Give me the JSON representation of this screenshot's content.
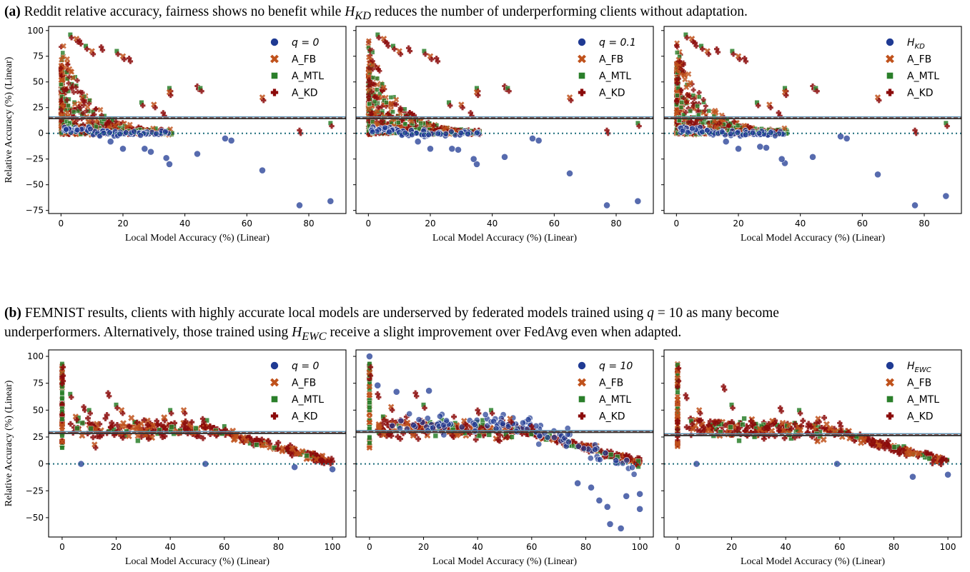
{
  "captions": {
    "a": {
      "tag": "(a)",
      "text": "Reddit relative accuracy, fairness shows no benefit while",
      "math": "H",
      "math_sub": "KD",
      "rest": "reduces the number of underperforming clients without adaptation."
    },
    "b": {
      "tag": "(b)",
      "line1": "FEMNIST results, clients with highly accurate local models are underserved by federated models trained using",
      "math_q": "q",
      "q_eq": "= 10 as many become",
      "line2a": "underperformers. Alternatively, those trained using",
      "math": "H",
      "math_sub": "EWC",
      "line2b": "receive a slight improvement over FedAvg even when adapted."
    }
  },
  "colors": {
    "base": "#1f3a93",
    "fb": "#c0521c",
    "mtl": "#2a7f2a",
    "kd": "#8b0a0a",
    "zero_line": "#1b6b7a",
    "mean_line": "#333333"
  },
  "chart_data": [
    {
      "type": "scatter",
      "dataset": "Reddit",
      "xlabel": "Local Model Accuracy (%) (Linear)",
      "ylabel": "Relative Accuracy (%) (Linear)",
      "xlim": [
        -4,
        92
      ],
      "ylim": [
        -78,
        104
      ],
      "xticks": [
        0,
        20,
        40,
        60,
        80
      ],
      "yticks": [
        -75,
        -50,
        -25,
        0,
        25,
        50,
        75,
        100
      ],
      "legend_position": "top-right",
      "legend": [
        {
          "label": "q = 0",
          "math": true,
          "marker": "circle",
          "color": "base"
        },
        {
          "label": "A_FB",
          "marker": "x",
          "color": "fb"
        },
        {
          "label": "A_MTL",
          "marker": "square",
          "color": "mtl"
        },
        {
          "label": "A_KD",
          "marker": "plus",
          "color": "kd"
        }
      ],
      "mean_line": 15,
      "zero_line": 0,
      "outliers": [
        [
          65,
          -36
        ],
        [
          77,
          -70
        ],
        [
          87,
          -66
        ],
        [
          44,
          -20
        ],
        [
          35,
          -30
        ],
        [
          34,
          -24
        ],
        [
          29,
          -18
        ],
        [
          27,
          -15
        ],
        [
          20,
          -15
        ],
        [
          16,
          -8
        ],
        [
          53,
          -5
        ],
        [
          55,
          -7
        ]
      ],
      "upper_points": [
        [
          3,
          96
        ],
        [
          5,
          92
        ],
        [
          6,
          90
        ],
        [
          8,
          85
        ],
        [
          10,
          80
        ],
        [
          13,
          84
        ],
        [
          18,
          80
        ],
        [
          20,
          75
        ],
        [
          22,
          73
        ],
        [
          26,
          30
        ],
        [
          30,
          28
        ],
        [
          33,
          20
        ],
        [
          35,
          44
        ],
        [
          35,
          40
        ],
        [
          44,
          46
        ],
        [
          45,
          44
        ],
        [
          65,
          35
        ],
        [
          77,
          3
        ],
        [
          87,
          10
        ]
      ]
    },
    {
      "type": "scatter",
      "dataset": "Reddit",
      "xlabel": "Local Model Accuracy (%) (Linear)",
      "xlim": [
        -4,
        92
      ],
      "ylim": [
        -78,
        104
      ],
      "xticks": [
        0,
        20,
        40,
        60,
        80
      ],
      "yticks": [
        -75,
        -50,
        -25,
        0,
        25,
        50,
        75,
        100
      ],
      "legend_position": "top-right",
      "legend": [
        {
          "label": "q = 0.1",
          "math": true,
          "marker": "circle",
          "color": "base"
        },
        {
          "label": "A_FB",
          "marker": "x",
          "color": "fb"
        },
        {
          "label": "A_MTL",
          "marker": "square",
          "color": "mtl"
        },
        {
          "label": "A_KD",
          "marker": "plus",
          "color": "kd"
        }
      ],
      "mean_line": 15,
      "zero_line": 0,
      "outliers": [
        [
          65,
          -39
        ],
        [
          77,
          -70
        ],
        [
          87,
          -66
        ],
        [
          44,
          -23
        ],
        [
          35,
          -30
        ],
        [
          34,
          -25
        ],
        [
          29,
          -16
        ],
        [
          27,
          -15
        ],
        [
          20,
          -15
        ],
        [
          16,
          -8
        ],
        [
          53,
          -5
        ],
        [
          55,
          -7
        ]
      ],
      "upper_points": [
        [
          3,
          96
        ],
        [
          5,
          92
        ],
        [
          6,
          88
        ],
        [
          8,
          85
        ],
        [
          10,
          80
        ],
        [
          13,
          83
        ],
        [
          18,
          80
        ],
        [
          20,
          75
        ],
        [
          22,
          73
        ],
        [
          26,
          30
        ],
        [
          30,
          28
        ],
        [
          33,
          20
        ],
        [
          35,
          44
        ],
        [
          35,
          40
        ],
        [
          44,
          46
        ],
        [
          45,
          44
        ],
        [
          65,
          35
        ],
        [
          77,
          3
        ],
        [
          87,
          10
        ]
      ]
    },
    {
      "type": "scatter",
      "dataset": "Reddit",
      "xlabel": "Local Model Accuracy (%) (Linear)",
      "xlim": [
        -4,
        92
      ],
      "ylim": [
        -78,
        104
      ],
      "xticks": [
        0,
        20,
        40,
        60,
        80
      ],
      "yticks": [
        -75,
        -50,
        -25,
        0,
        25,
        50,
        75,
        100
      ],
      "legend_position": "top-right",
      "legend": [
        {
          "label": "H",
          "sub": "KD",
          "math": true,
          "marker": "circle",
          "color": "base"
        },
        {
          "label": "A_FB",
          "marker": "x",
          "color": "fb"
        },
        {
          "label": "A_MTL",
          "marker": "square",
          "color": "mtl"
        },
        {
          "label": "A_KD",
          "marker": "plus",
          "color": "kd"
        }
      ],
      "mean_line": 15,
      "zero_line": 0,
      "outliers": [
        [
          65,
          -40
        ],
        [
          77,
          -70
        ],
        [
          87,
          -61
        ],
        [
          44,
          -23
        ],
        [
          35,
          -29
        ],
        [
          34,
          -25
        ],
        [
          29,
          -14
        ],
        [
          27,
          -13
        ],
        [
          20,
          -15
        ],
        [
          16,
          -8
        ],
        [
          53,
          -3
        ],
        [
          55,
          -5
        ]
      ],
      "upper_points": [
        [
          3,
          96
        ],
        [
          5,
          92
        ],
        [
          6,
          88
        ],
        [
          8,
          85
        ],
        [
          10,
          80
        ],
        [
          13,
          82
        ],
        [
          18,
          80
        ],
        [
          20,
          75
        ],
        [
          22,
          73
        ],
        [
          26,
          30
        ],
        [
          30,
          28
        ],
        [
          33,
          20
        ],
        [
          35,
          44
        ],
        [
          35,
          40
        ],
        [
          44,
          46
        ],
        [
          45,
          44
        ],
        [
          65,
          35
        ],
        [
          77,
          3
        ],
        [
          87,
          10
        ]
      ]
    },
    {
      "type": "scatter",
      "dataset": "FEMNIST",
      "xlabel": "Local Model Accuracy (%) (Linear)",
      "ylabel": "Relative Accuracy (%) (Linear)",
      "xlim": [
        -5,
        105
      ],
      "ylim": [
        -68,
        106
      ],
      "xticks": [
        0,
        20,
        40,
        60,
        80,
        100
      ],
      "yticks": [
        -50,
        -25,
        0,
        25,
        50,
        75,
        100
      ],
      "legend_position": "top-right",
      "legend": [
        {
          "label": "q = 0",
          "math": true,
          "marker": "circle",
          "color": "base"
        },
        {
          "label": "A_FB",
          "marker": "x",
          "color": "fb"
        },
        {
          "label": "A_MTL",
          "marker": "square",
          "color": "mtl"
        },
        {
          "label": "A_KD",
          "marker": "plus",
          "color": "kd"
        }
      ],
      "mean_line": 29,
      "zero_line": 0,
      "outliers": [
        [
          86,
          -3
        ],
        [
          100,
          -5
        ],
        [
          7,
          0
        ],
        [
          53,
          0
        ]
      ],
      "upper_points": [
        [
          0,
          93
        ],
        [
          0,
          85
        ],
        [
          0,
          80
        ],
        [
          3,
          65
        ],
        [
          5,
          44
        ],
        [
          8,
          53
        ],
        [
          10,
          50
        ],
        [
          12,
          18
        ],
        [
          17,
          66
        ],
        [
          20,
          55
        ],
        [
          22,
          50
        ],
        [
          35,
          40
        ],
        [
          40,
          50
        ],
        [
          45,
          50
        ],
        [
          52,
          42
        ],
        [
          60,
          35
        ]
      ]
    },
    {
      "type": "scatter",
      "dataset": "FEMNIST",
      "xlabel": "Local Model Accuracy (%) (Linear)",
      "xlim": [
        -5,
        105
      ],
      "ylim": [
        -68,
        106
      ],
      "xticks": [
        0,
        20,
        40,
        60,
        80,
        100
      ],
      "yticks": [
        -50,
        -25,
        0,
        25,
        50,
        75,
        100
      ],
      "legend_position": "top-right",
      "legend": [
        {
          "label": "q = 10",
          "math": true,
          "marker": "circle",
          "color": "base"
        },
        {
          "label": "A_FB",
          "marker": "x",
          "color": "fb"
        },
        {
          "label": "A_MTL",
          "marker": "square",
          "color": "mtl"
        },
        {
          "label": "A_KD",
          "marker": "plus",
          "color": "kd"
        }
      ],
      "mean_line": 30,
      "zero_line": 0,
      "outliers": [
        [
          0,
          100
        ],
        [
          3,
          73
        ],
        [
          10,
          67
        ],
        [
          22,
          68
        ],
        [
          77,
          -18
        ],
        [
          82,
          -22
        ],
        [
          85,
          -34
        ],
        [
          88,
          -40
        ],
        [
          89,
          -56
        ],
        [
          93,
          -60
        ],
        [
          95,
          -30
        ],
        [
          100,
          -42
        ],
        [
          100,
          -28
        ]
      ],
      "upper_points": [
        [
          0,
          93
        ],
        [
          0,
          85
        ],
        [
          3,
          65
        ],
        [
          5,
          44
        ],
        [
          8,
          53
        ],
        [
          17,
          66
        ],
        [
          20,
          55
        ],
        [
          35,
          40
        ],
        [
          40,
          50
        ],
        [
          45,
          50
        ],
        [
          52,
          42
        ],
        [
          60,
          35
        ]
      ]
    },
    {
      "type": "scatter",
      "dataset": "FEMNIST",
      "xlabel": "Local Model Accuracy (%) (Linear)",
      "xlim": [
        -5,
        105
      ],
      "ylim": [
        -68,
        106
      ],
      "xticks": [
        0,
        20,
        40,
        60,
        80,
        100
      ],
      "yticks": [
        -50,
        -25,
        0,
        25,
        50,
        75,
        100
      ],
      "legend_position": "top-right",
      "legend": [
        {
          "label": "H",
          "sub": "EWC",
          "math": true,
          "marker": "circle",
          "color": "base"
        },
        {
          "label": "A_FB",
          "marker": "x",
          "color": "fb"
        },
        {
          "label": "A_MTL",
          "marker": "square",
          "color": "mtl"
        },
        {
          "label": "A_KD",
          "marker": "plus",
          "color": "kd"
        }
      ],
      "mean_line": 27,
      "zero_line": 0,
      "outliers": [
        [
          87,
          -12
        ],
        [
          100,
          -10
        ],
        [
          7,
          0
        ],
        [
          59,
          0
        ]
      ],
      "upper_points": [
        [
          0,
          92
        ],
        [
          0,
          80
        ],
        [
          3,
          64
        ],
        [
          5,
          40
        ],
        [
          8,
          50
        ],
        [
          17,
          72
        ],
        [
          20,
          55
        ],
        [
          35,
          40
        ],
        [
          38,
          52
        ],
        [
          45,
          50
        ],
        [
          52,
          42
        ],
        [
          60,
          38
        ]
      ]
    }
  ]
}
